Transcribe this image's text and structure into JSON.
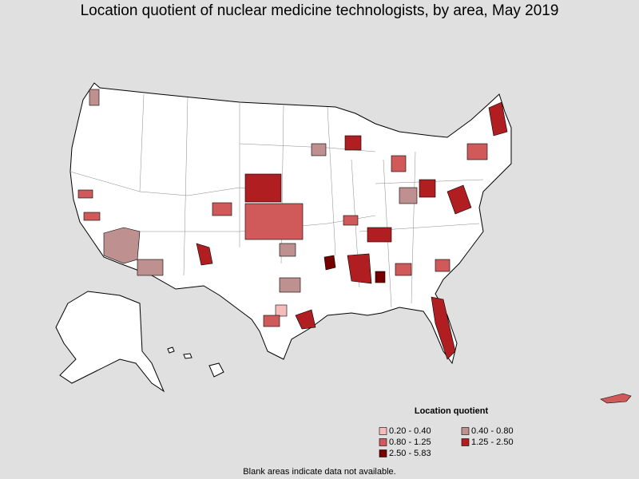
{
  "title": "Location quotient of nuclear medicine technologists, by area, May 2019",
  "legend": {
    "title": "Location quotient",
    "items": [
      {
        "label": "0.20 - 0.40",
        "color": "#f5bcbc"
      },
      {
        "label": "0.40 - 0.80",
        "color": "#bf9090"
      },
      {
        "label": "0.80 - 1.25",
        "color": "#d05a5a"
      },
      {
        "label": "1.25 - 2.50",
        "color": "#b01e22"
      },
      {
        "label": "2.50 - 5.83",
        "color": "#760000"
      }
    ]
  },
  "footnote": "Blank areas indicate data not available."
}
